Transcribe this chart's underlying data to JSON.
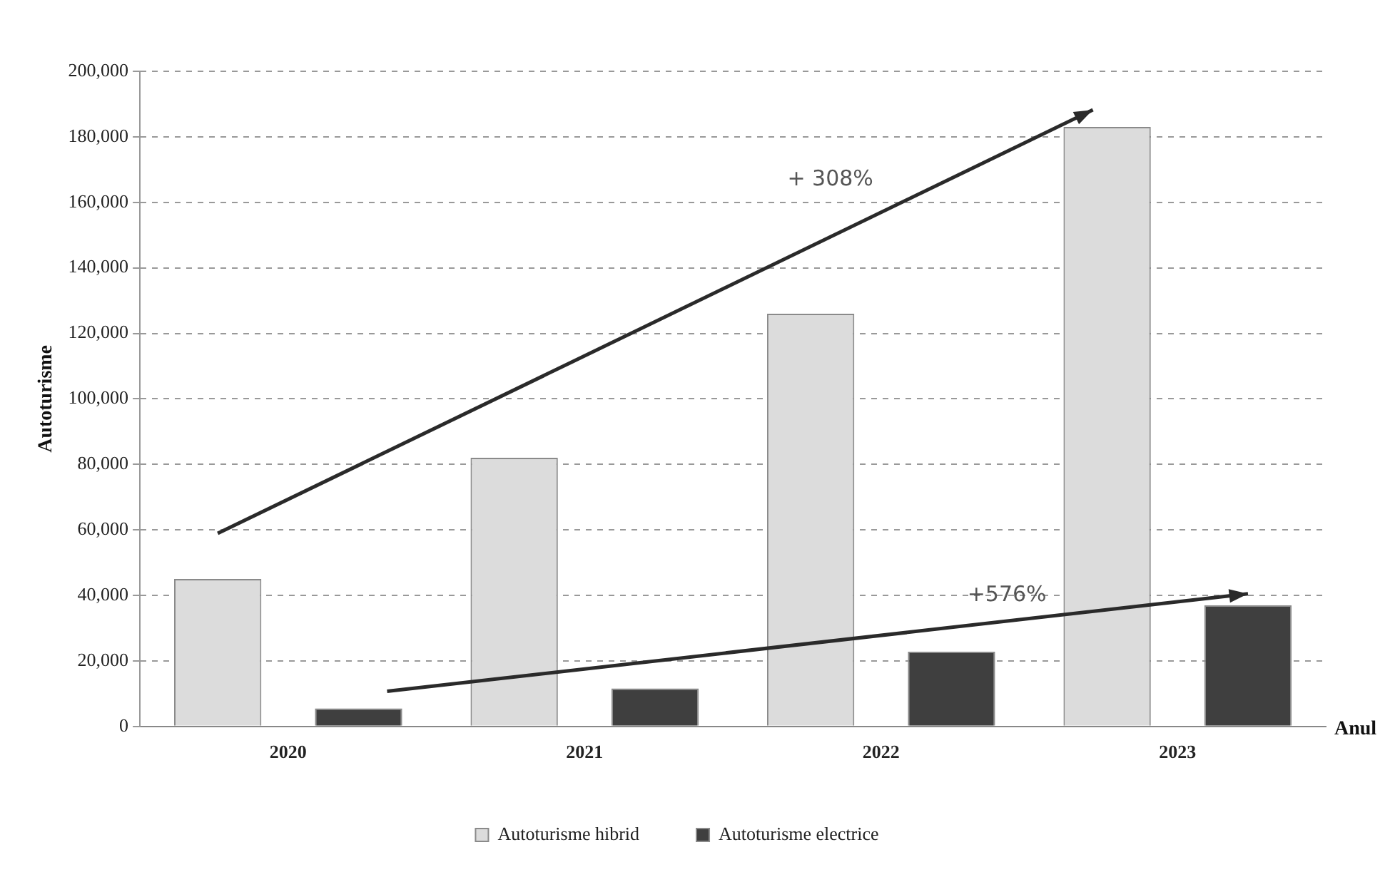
{
  "chart_data": {
    "type": "bar",
    "xlabel": "Anul",
    "ylabel": "Autoturisme",
    "categories": [
      "2020",
      "2021",
      "2022",
      "2023"
    ],
    "series": [
      {
        "name": "Autoturisme hibrid",
        "color": "#dcdcdc",
        "values": [
          45000,
          82000,
          126000,
          183000
        ]
      },
      {
        "name": "Autoturisme electrice",
        "color": "#3f3f3f",
        "values": [
          5500,
          11600,
          22800,
          37000
        ]
      }
    ],
    "ylim": [
      0,
      200000
    ],
    "yticks": [
      0,
      {
        "value": 20000,
        "label": "20,000"
      },
      {
        "value": 40000,
        "label": "40,000"
      },
      {
        "value": 60000,
        "label": "60,000"
      },
      {
        "value": 80000,
        "label": "80,000"
      },
      {
        "value": 100000,
        "label": "100,000"
      },
      {
        "value": 120000,
        "label": "120,000"
      },
      {
        "value": 140000,
        "label": "140,000"
      },
      {
        "value": 160000,
        "label": "160,000"
      },
      {
        "value": 180000,
        "label": "180,000"
      },
      {
        "value": 200000,
        "label": "200,000"
      }
    ],
    "grid": "y",
    "legend": "bottom",
    "annotations": [
      "+ 308%",
      "+576%"
    ]
  }
}
